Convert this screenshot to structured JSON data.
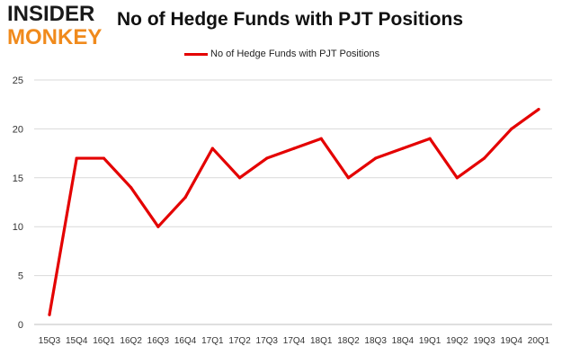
{
  "logo": {
    "line1": "INSIDER",
    "line2": "MONKEY"
  },
  "chart_data": {
    "type": "line",
    "title": "No of Hedge Funds with PJT Positions",
    "xlabel": "",
    "ylabel": "",
    "categories": [
      "15Q3",
      "15Q4",
      "16Q1",
      "16Q2",
      "16Q3",
      "16Q4",
      "17Q1",
      "17Q2",
      "17Q3",
      "17Q4",
      "18Q1",
      "18Q2",
      "18Q3",
      "18Q4",
      "19Q1",
      "19Q2",
      "19Q3",
      "19Q4",
      "20Q1"
    ],
    "series": [
      {
        "name": "No of Hedge Funds with PJT Positions",
        "color": "#e40000",
        "values": [
          1,
          17,
          17,
          14,
          10,
          13,
          18,
          15,
          17,
          18,
          19,
          15,
          17,
          18,
          19,
          15,
          17,
          20,
          22
        ]
      }
    ],
    "ylim": [
      0,
      25
    ],
    "yticks": [
      0,
      5,
      10,
      15,
      20,
      25
    ],
    "grid": true,
    "legend_position": "top-center"
  }
}
